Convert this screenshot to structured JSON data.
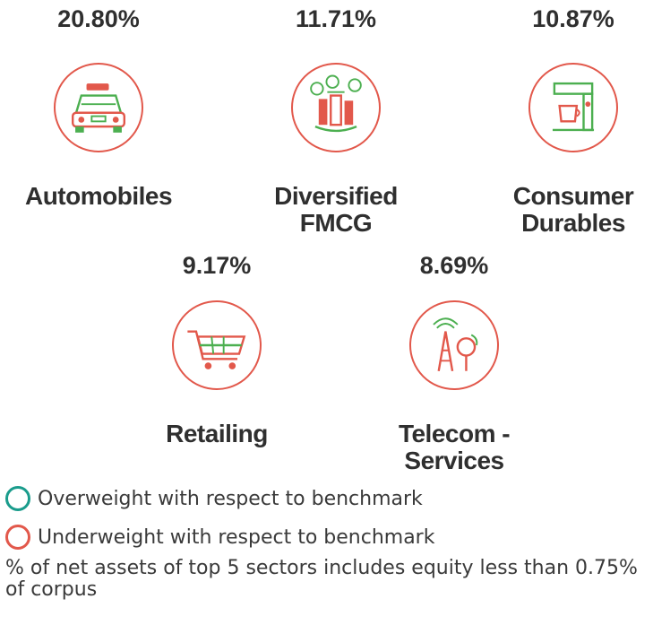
{
  "sectors": [
    {
      "percent": "20.80%",
      "name_line1": "Automobiles",
      "name_line2": "",
      "icon": "car-icon"
    },
    {
      "percent": "11.71%",
      "name_line1": "Diversified",
      "name_line2": "FMCG",
      "icon": "fmcg-products-icon"
    },
    {
      "percent": "10.87%",
      "name_line1": "Consumer",
      "name_line2": "Durables",
      "icon": "coffee-machine-icon"
    },
    {
      "percent": "9.17%",
      "name_line1": "Retailing",
      "name_line2": "",
      "icon": "shopping-cart-icon"
    },
    {
      "percent": "8.69%",
      "name_line1": "Telecom -",
      "name_line2": "Services",
      "icon": "telecom-tower-icon"
    }
  ],
  "legend": {
    "overweight": "Overweight with respect to benchmark",
    "underweight": "Underweight with respect to benchmark"
  },
  "footnote": "% of net assets of top 5 sectors includes equity less than 0.75% of corpus",
  "colors": {
    "overweight": "#1a9c8c",
    "underweight": "#e2584b",
    "icon_green": "#4caf50",
    "icon_red": "#e2584b"
  }
}
